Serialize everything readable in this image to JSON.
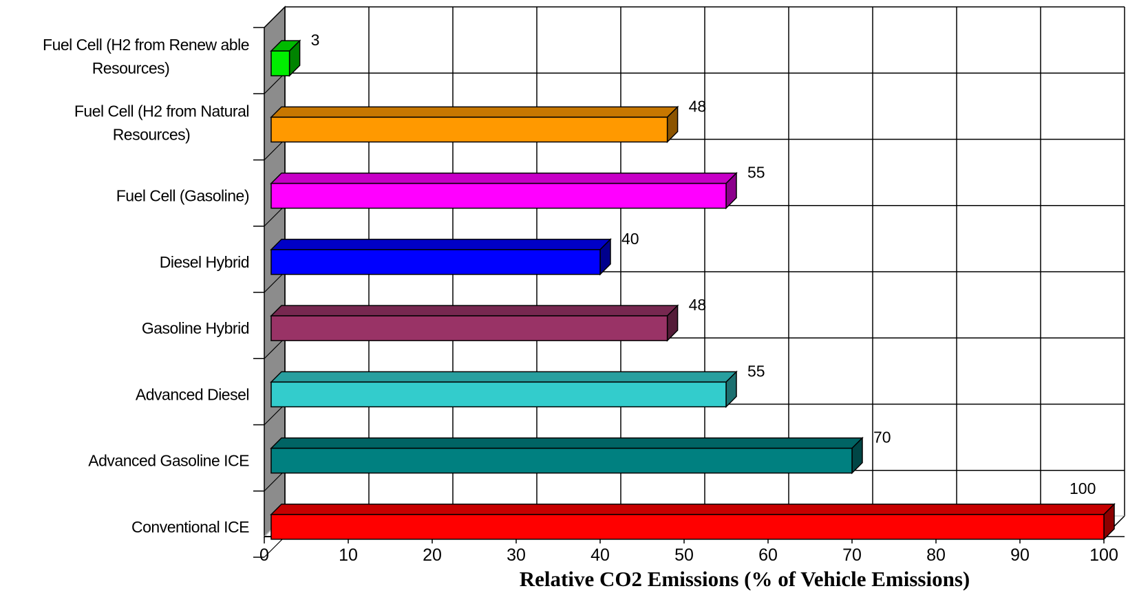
{
  "chart_data": {
    "type": "bar",
    "orientation": "horizontal",
    "style": "3d",
    "categories": [
      "Fuel Cell (H2 from Renew able Resources)",
      "Fuel Cell (H2 from Natural Resources)",
      "Fuel Cell (Gasoline)",
      "Diesel Hybrid",
      "Gasoline Hybrid",
      "Advanced Diesel",
      "Advanced Gasoline ICE",
      "Conventional ICE"
    ],
    "category_lines": [
      [
        "Fuel Cell (H2 from Renew able",
        "Resources)"
      ],
      [
        "Fuel Cell (H2 from Natural",
        "Resources)"
      ],
      [
        "Fuel Cell (Gasoline)"
      ],
      [
        "Diesel Hybrid"
      ],
      [
        "Gasoline Hybrid"
      ],
      [
        "Advanced Diesel"
      ],
      [
        "Advanced Gasoline ICE"
      ],
      [
        "Conventional ICE"
      ]
    ],
    "values": [
      3,
      48,
      55,
      40,
      48,
      55,
      70,
      100
    ],
    "value_labels": [
      "3",
      "48",
      "55",
      "40",
      "48",
      "55",
      "70",
      "100"
    ],
    "colors": [
      "#00ee00",
      "#ff9900",
      "#ff00ff",
      "#0000ff",
      "#993366",
      "#33cccc",
      "#008080",
      "#ff0000"
    ],
    "xlim": [
      0,
      100
    ],
    "xticks": [
      "0",
      "10",
      "20",
      "30",
      "40",
      "50",
      "60",
      "70",
      "80",
      "90",
      "100"
    ],
    "xlabel": "Relative CO2 Emissions (% of  Vehicle Emissions)",
    "ylabel": "",
    "title": "",
    "grid": true,
    "legend": "none"
  }
}
